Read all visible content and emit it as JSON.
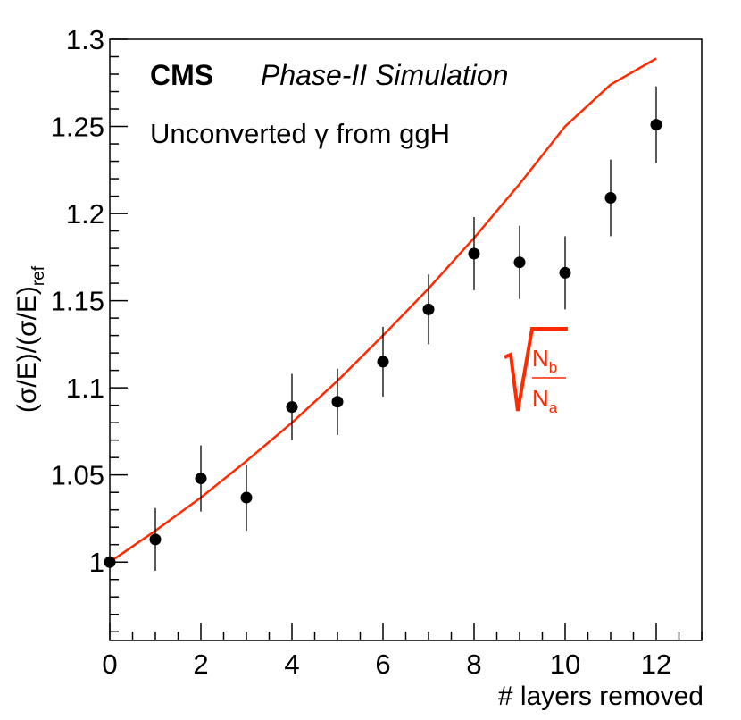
{
  "chart_data": {
    "type": "scatter",
    "xlabel": "# layers removed",
    "ylabel_main": "(σ/E)/(σ/E)",
    "ylabel_sub": "ref",
    "xlim": [
      0,
      13
    ],
    "ylim": [
      0.955,
      1.3
    ],
    "x_ticks": [
      0,
      2,
      4,
      6,
      8,
      10,
      12
    ],
    "y_ticks": [
      1,
      1.05,
      1.1,
      1.15,
      1.2,
      1.25,
      1.3
    ],
    "y_tick_labels": [
      "1",
      "1.05",
      "1.1",
      "1.15",
      "1.2",
      "1.25",
      "1.3"
    ],
    "grid": false,
    "experiment": "CMS",
    "status": "Phase-II Simulation",
    "sample": "Unconverted γ from ggH",
    "series": [
      {
        "type": "points-with-errors",
        "color": "#000000",
        "x": [
          0,
          1,
          2,
          3,
          4,
          5,
          6,
          7,
          8,
          9,
          10,
          11,
          12
        ],
        "y": [
          1.0,
          1.013,
          1.048,
          1.037,
          1.089,
          1.092,
          1.115,
          1.145,
          1.177,
          1.172,
          1.166,
          1.209,
          1.251
        ],
        "yerr": [
          0.0,
          0.018,
          0.019,
          0.019,
          0.019,
          0.019,
          0.02,
          0.02,
          0.021,
          0.021,
          0.021,
          0.022,
          0.022
        ]
      },
      {
        "type": "curve",
        "color": "#ff2a00",
        "function": "sqrt(Nb/Na)",
        "formula_label": {
          "numerator": "N",
          "numerator_sub": "b",
          "denominator": "N",
          "denominator_sub": "a"
        },
        "x": [
          0,
          1,
          2,
          3,
          4,
          5,
          6,
          7,
          8,
          9,
          10,
          11,
          12
        ],
        "y": [
          1.0,
          1.018,
          1.037,
          1.058,
          1.08,
          1.104,
          1.13,
          1.157,
          1.186,
          1.217,
          1.25,
          1.274,
          1.289
        ]
      }
    ]
  }
}
